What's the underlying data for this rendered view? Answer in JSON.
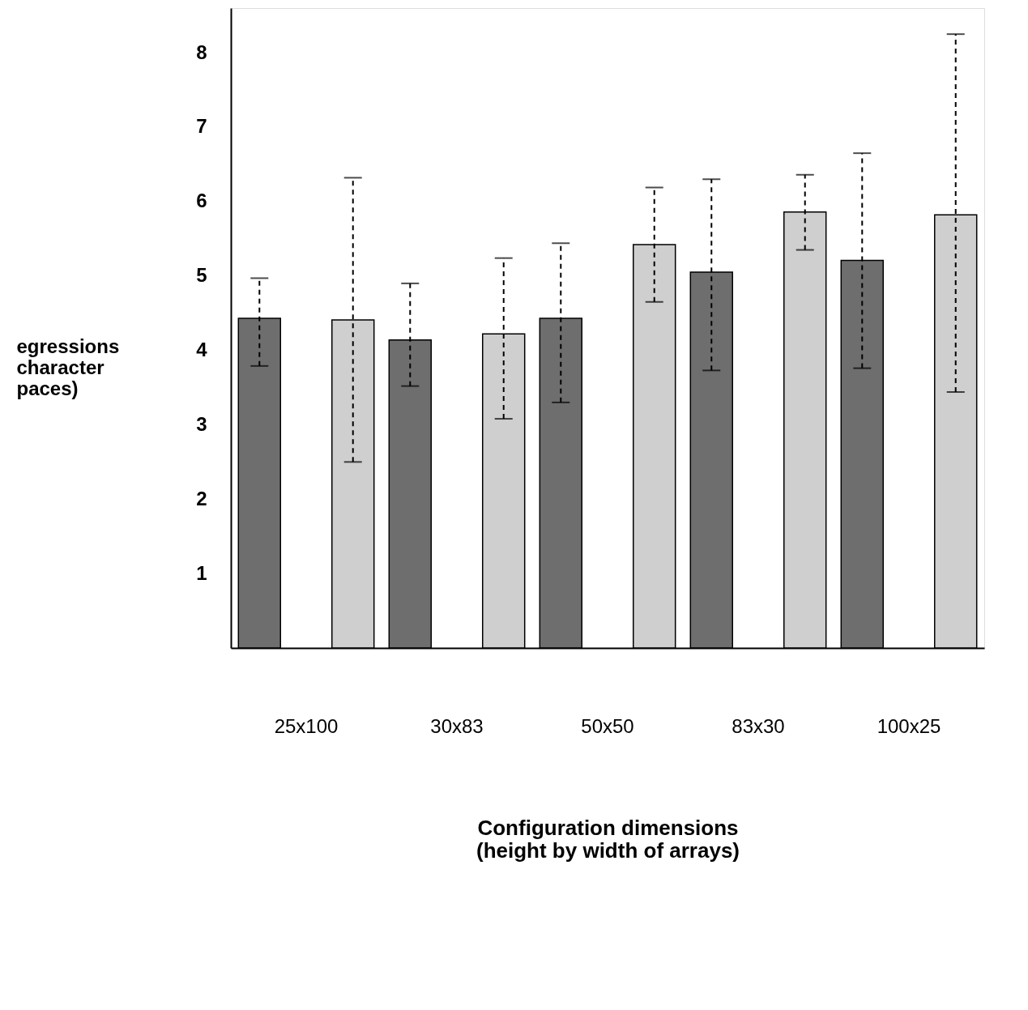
{
  "chart_data": {
    "type": "bar",
    "xlabel": "Configuration dimensions\n(height by width of arrays)",
    "ylabel": "egressions\ncharacter\npaces)",
    "categories": [
      "25x100",
      "30x83",
      "50x50",
      "83x30",
      "100x25"
    ],
    "series": [
      {
        "color": "#6e6e6e",
        "values": [
          4.43,
          4.14,
          4.43,
          5.05,
          5.21
        ],
        "errors": [
          [
            3.79,
            4.97
          ],
          [
            3.52,
            4.9
          ],
          [
            3.3,
            5.44
          ],
          [
            3.73,
            6.3
          ],
          [
            3.76,
            6.65
          ]
        ]
      },
      {
        "color": "#cfcfcf",
        "values": [
          4.41,
          4.22,
          5.42,
          5.86,
          5.82
        ],
        "errors": [
          [
            2.5,
            6.32
          ],
          [
            3.08,
            5.24
          ],
          [
            4.65,
            6.19
          ],
          [
            5.35,
            6.36
          ],
          [
            3.44,
            8.25
          ]
        ]
      }
    ],
    "ylim": [
      0,
      8.6
    ],
    "yticks": [
      1,
      2,
      3,
      4,
      5,
      6,
      7,
      8
    ],
    "grid": false,
    "legend": false,
    "line_style": "dashed"
  }
}
